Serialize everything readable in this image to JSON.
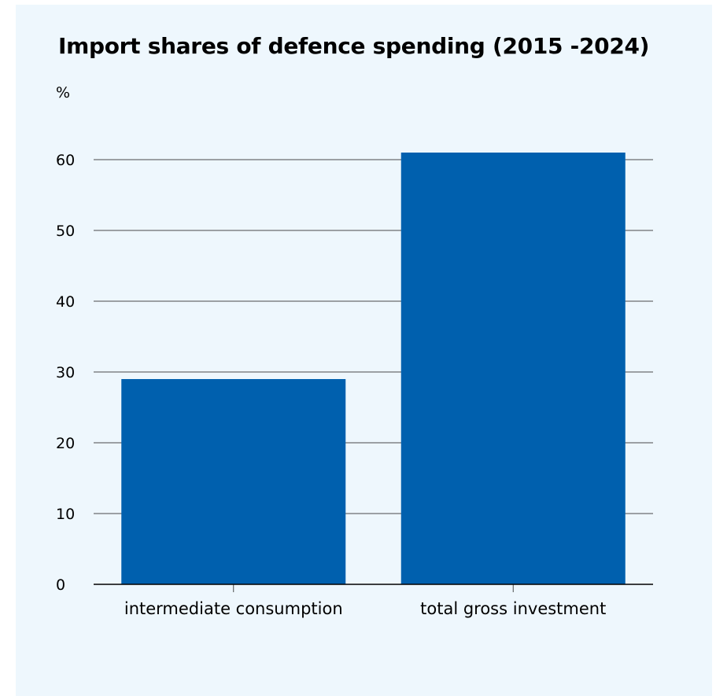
{
  "chart_data": {
    "type": "bar",
    "title": "Import shares of defence spending (2015 -2024)",
    "ylabel": "%",
    "xlabel": "",
    "categories": [
      "intermediate consumption",
      "total gross investment"
    ],
    "values": [
      29,
      61
    ],
    "ylim": [
      0,
      60
    ],
    "yticks": [
      0,
      10,
      20,
      30,
      40,
      50,
      60
    ],
    "grid": true,
    "bar_color": "#0060ae",
    "background_color": "#eef7fd"
  }
}
